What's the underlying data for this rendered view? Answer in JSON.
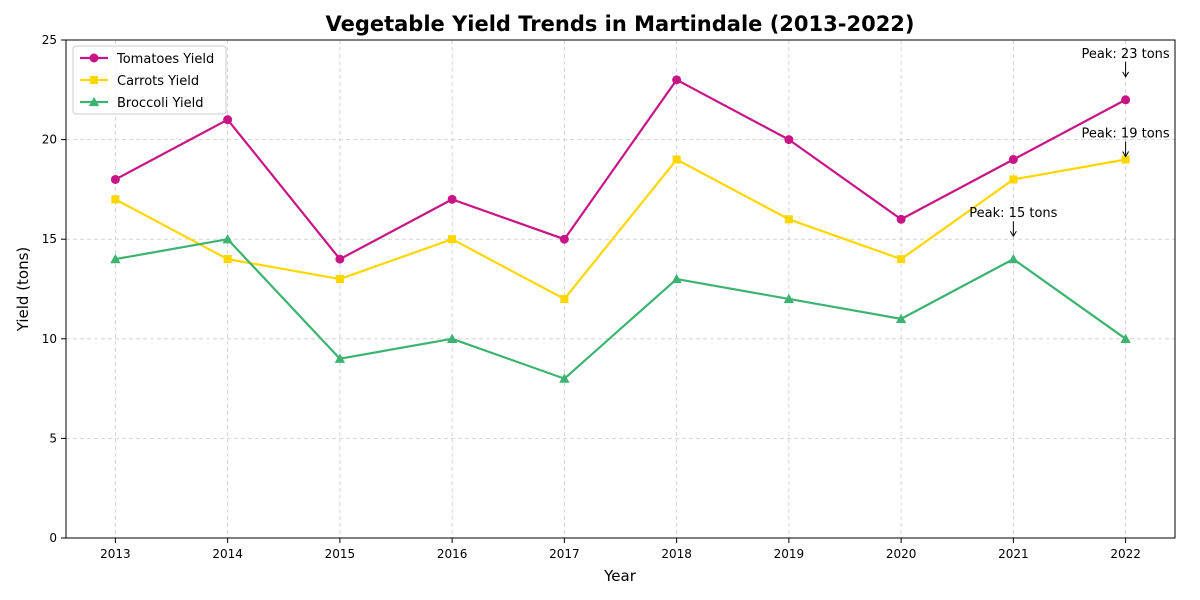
{
  "chart_data": {
    "type": "line",
    "title": "Vegetable Yield Trends in Martindale (2013-2022)",
    "xlabel": "Year",
    "ylabel": "Yield (tons)",
    "x": [
      2013,
      2014,
      2015,
      2016,
      2017,
      2018,
      2019,
      2020,
      2021,
      2022
    ],
    "x_tick_labels": [
      "2013",
      "2014",
      "2015",
      "2016",
      "2017",
      "2018",
      "2019",
      "2020",
      "2021",
      "2022"
    ],
    "ylim": [
      0,
      25
    ],
    "y_ticks": [
      0,
      5,
      10,
      15,
      20,
      25
    ],
    "y_tick_labels": [
      "0",
      "5",
      "10",
      "15",
      "20",
      "25"
    ],
    "grid": true,
    "legend_position": "top-left",
    "series": [
      {
        "name": "Tomatoes Yield",
        "color": "#C71585",
        "marker": "circle",
        "values": [
          18,
          21,
          14,
          17,
          15,
          23,
          20,
          16,
          19,
          22
        ]
      },
      {
        "name": "Carrots Yield",
        "color": "#FFD700",
        "marker": "square",
        "values": [
          17,
          14,
          13,
          15,
          12,
          19,
          16,
          14,
          18,
          19
        ]
      },
      {
        "name": "Broccoli Yield",
        "color": "#3CB371",
        "marker": "triangle",
        "values": [
          14,
          15,
          9,
          10,
          8,
          13,
          12,
          11,
          14,
          10
        ]
      }
    ],
    "annotations": [
      {
        "text": "Peak: 23 tons",
        "x": 2022,
        "y": 23
      },
      {
        "text": "Peak: 19 tons",
        "x": 2022,
        "y": 19
      },
      {
        "text": "Peak: 15 tons",
        "x": 2021,
        "y": 15
      }
    ]
  }
}
